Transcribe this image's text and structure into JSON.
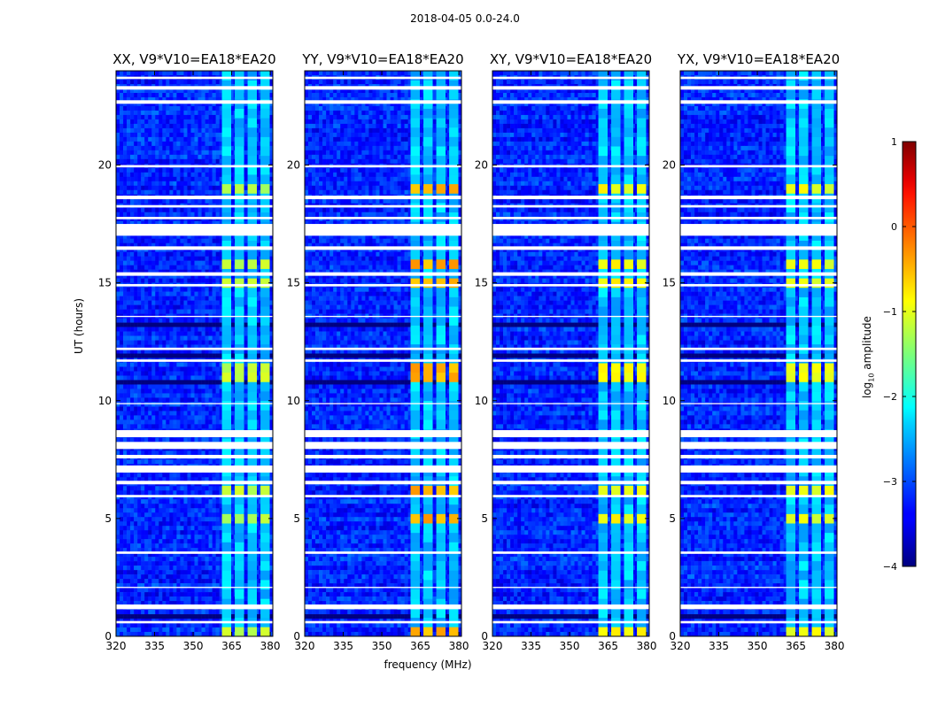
{
  "suptitle": "2018-04-05 0.0-24.0",
  "ylabel": "UT (hours)",
  "xlabel": "frequency (MHz)",
  "colorbar": {
    "label_main": "log",
    "label_sub": "10",
    "label_rest": " amplitude",
    "ticks": [
      "1",
      "0",
      "−1",
      "−2",
      "−3",
      "−4"
    ],
    "range": [
      -4,
      1
    ]
  },
  "chart_data": {
    "type": "heatmap",
    "title": "2018-04-05 0.0-24.0",
    "xlabel": "frequency (MHz)",
    "ylabel": "UT (hours)",
    "xlim": [
      320,
      381
    ],
    "ylim": [
      0,
      24
    ],
    "xticks": [
      "320",
      "335",
      "350",
      "365",
      "380"
    ],
    "yticks": [
      "0",
      "5",
      "10",
      "15",
      "20"
    ],
    "color_scale": {
      "label": "log10 amplitude",
      "min": -4,
      "max": 1,
      "colormap": "jet"
    },
    "panels": [
      {
        "title": "XX, V9*V10=EA18*EA20",
        "peak_log_amp": -1.2
      },
      {
        "title": "YY, V9*V10=EA18*EA20",
        "peak_log_amp": -0.5
      },
      {
        "title": "XY, V9*V10=EA18*EA20",
        "peak_log_amp": -0.9
      },
      {
        "title": "YX, V9*V10=EA18*EA20",
        "peak_log_amp": -1.0
      }
    ],
    "background_log_amp": -3.2,
    "rfi_band_mhz": [
      359,
      379
    ],
    "rfi_channel_centers_mhz": [
      363,
      368,
      373,
      378
    ],
    "flagged_ut_ranges": [
      [
        0.55,
        0.65
      ],
      [
        1.15,
        1.35
      ],
      [
        2.05,
        2.1
      ],
      [
        3.5,
        3.6
      ],
      [
        5.9,
        6.0
      ],
      [
        6.45,
        6.6
      ],
      [
        6.95,
        7.25
      ],
      [
        7.55,
        7.7
      ],
      [
        7.95,
        8.25
      ],
      [
        8.45,
        8.75
      ],
      [
        9.85,
        9.9
      ],
      [
        11.65,
        11.75
      ],
      [
        12.15,
        12.25
      ],
      [
        13.55,
        13.6
      ],
      [
        14.85,
        14.95
      ],
      [
        15.3,
        15.45
      ],
      [
        16.4,
        16.55
      ],
      [
        17.0,
        17.5
      ],
      [
        17.7,
        17.8
      ],
      [
        18.2,
        18.3
      ],
      [
        18.55,
        18.7
      ],
      [
        19.9,
        20.0
      ],
      [
        22.6,
        22.75
      ],
      [
        23.2,
        23.35
      ],
      [
        23.65,
        23.75
      ]
    ],
    "dark_ut_ranges": [
      [
        0.75,
        0.9
      ],
      [
        10.7,
        10.9
      ],
      [
        11.85,
        11.95
      ],
      [
        13.05,
        13.3
      ],
      [
        21.3,
        21.35
      ],
      [
        23.45,
        23.5
      ]
    ],
    "rfi_bright_ut_ranges": [
      [
        0.1,
        0.35
      ],
      [
        5.0,
        5.3
      ],
      [
        6.2,
        6.5
      ],
      [
        11.0,
        11.6
      ],
      [
        14.95,
        15.35
      ],
      [
        15.7,
        16.05
      ],
      [
        19.0,
        19.35
      ]
    ]
  }
}
